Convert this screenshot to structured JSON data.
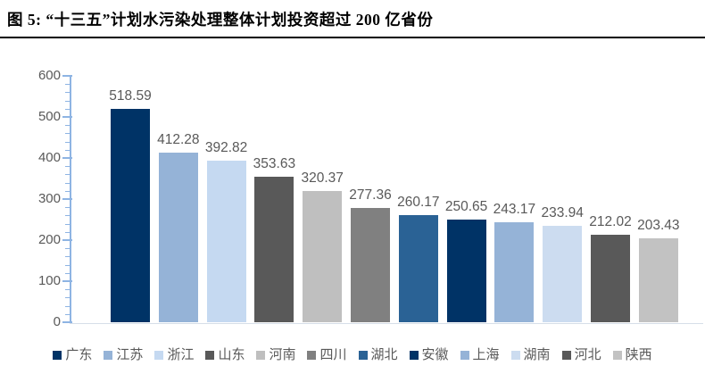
{
  "title": "图 5: “十三五”计划水污染处理整体计划投资超过 200 亿省份",
  "chart_data": {
    "type": "bar",
    "title": "“十三五”计划水污染处理整体计划投资超过 200 亿省份",
    "categories": [
      "广东",
      "江苏",
      "浙江",
      "山东",
      "河南",
      "四川",
      "湖北",
      "安徽",
      "上海",
      "湖南",
      "河北",
      "陕西"
    ],
    "values": [
      518.59,
      412.28,
      392.82,
      353.63,
      320.37,
      277.36,
      260.17,
      250.65,
      243.17,
      233.94,
      212.02,
      203.43
    ],
    "series_colors": [
      "#003366",
      "#95B3D7",
      "#C5D9F1",
      "#595959",
      "#BFBFBF",
      "#808080",
      "#2A6295",
      "#003366",
      "#95B3D7",
      "#CCDCF0",
      "#595959",
      "#C2C2C2"
    ],
    "data_label_color": "#595959",
    "axis_color": "#8EB4E3",
    "tick_label_color": "#595959",
    "xlabel": "",
    "ylabel": "",
    "ylim": [
      0,
      600
    ],
    "y_major_step": 100,
    "y_minor_step": 20,
    "y_tick_labels": [
      "0",
      "100",
      "200",
      "300",
      "400",
      "500",
      "600"
    ],
    "grid": false,
    "legend_position": "bottom",
    "data_labels_shown": true
  }
}
